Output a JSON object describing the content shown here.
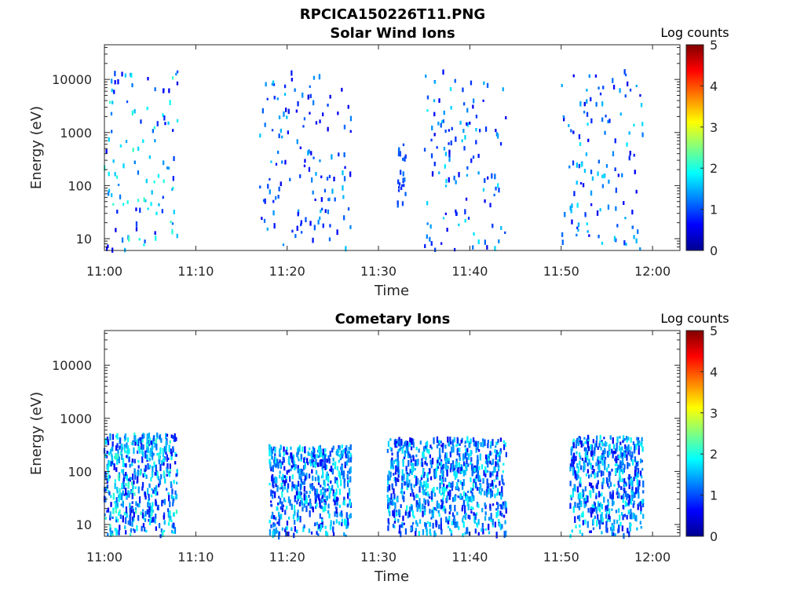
{
  "figure": {
    "title": "RPCICA150226T11.PNG"
  },
  "chart_data": [
    {
      "type": "heatmap",
      "title": "Solar Wind Ions",
      "xlabel": "Time",
      "ylabel": "Energy (eV)",
      "x_range": [
        "11:00",
        "12:03"
      ],
      "x_ticks": [
        "11:00",
        "11:10",
        "11:20",
        "11:30",
        "11:40",
        "11:50",
        "12:00"
      ],
      "y_scale": "log",
      "ylim": [
        6,
        45000
      ],
      "y_ticks": [
        10,
        100,
        1000,
        10000
      ],
      "y_tick_labels": [
        "10",
        "100",
        "1000",
        "10000"
      ],
      "colorbar": {
        "label": "Log counts",
        "range": [
          0,
          5
        ],
        "ticks": [
          "0",
          "1",
          "2",
          "3",
          "4",
          "5"
        ],
        "colormap": "jet"
      },
      "activity_bursts": [
        {
          "start": "11:00",
          "end": "11:08",
          "energy_range_eV": [
            6,
            14000
          ],
          "log_counts_range": [
            0.5,
            2.2
          ]
        },
        {
          "start": "11:17",
          "end": "11:27",
          "energy_range_eV": [
            6,
            14000
          ],
          "log_counts_range": [
            0.5,
            1.6
          ]
        },
        {
          "start": "11:32",
          "end": "11:33",
          "energy_range_eV": [
            40,
            600
          ],
          "log_counts_range": [
            0.8,
            1.2
          ]
        },
        {
          "start": "11:35",
          "end": "11:44",
          "energy_range_eV": [
            6,
            14000
          ],
          "log_counts_range": [
            0.5,
            1.8
          ]
        },
        {
          "start": "11:50",
          "end": "11:59",
          "energy_range_eV": [
            6,
            14000
          ],
          "log_counts_range": [
            0.5,
            1.8
          ]
        }
      ]
    },
    {
      "type": "heatmap",
      "title": "Cometary Ions",
      "xlabel": "Time",
      "ylabel": "Energy (eV)",
      "x_range": [
        "11:00",
        "12:03"
      ],
      "x_ticks": [
        "11:00",
        "11:10",
        "11:20",
        "11:30",
        "11:40",
        "11:50",
        "12:00"
      ],
      "y_scale": "log",
      "ylim": [
        6,
        45000
      ],
      "y_ticks": [
        10,
        100,
        1000,
        10000
      ],
      "y_tick_labels": [
        "10",
        "100",
        "1000",
        "10000"
      ],
      "colorbar": {
        "label": "Log counts",
        "range": [
          0,
          5
        ],
        "ticks": [
          "0",
          "1",
          "2",
          "3",
          "4",
          "5"
        ],
        "colormap": "jet"
      },
      "activity_bursts": [
        {
          "start": "11:00",
          "end": "11:08",
          "energy_range_eV": [
            6,
            500
          ],
          "log_counts_range": [
            0.5,
            2.2
          ]
        },
        {
          "start": "11:18",
          "end": "11:27",
          "energy_range_eV": [
            6,
            300
          ],
          "log_counts_range": [
            0.5,
            2.0
          ]
        },
        {
          "start": "11:31",
          "end": "11:44",
          "energy_range_eV": [
            6,
            400
          ],
          "log_counts_range": [
            0.5,
            2.0
          ]
        },
        {
          "start": "11:51",
          "end": "11:59",
          "energy_range_eV": [
            6,
            450
          ],
          "log_counts_range": [
            0.5,
            2.0
          ]
        }
      ]
    }
  ]
}
